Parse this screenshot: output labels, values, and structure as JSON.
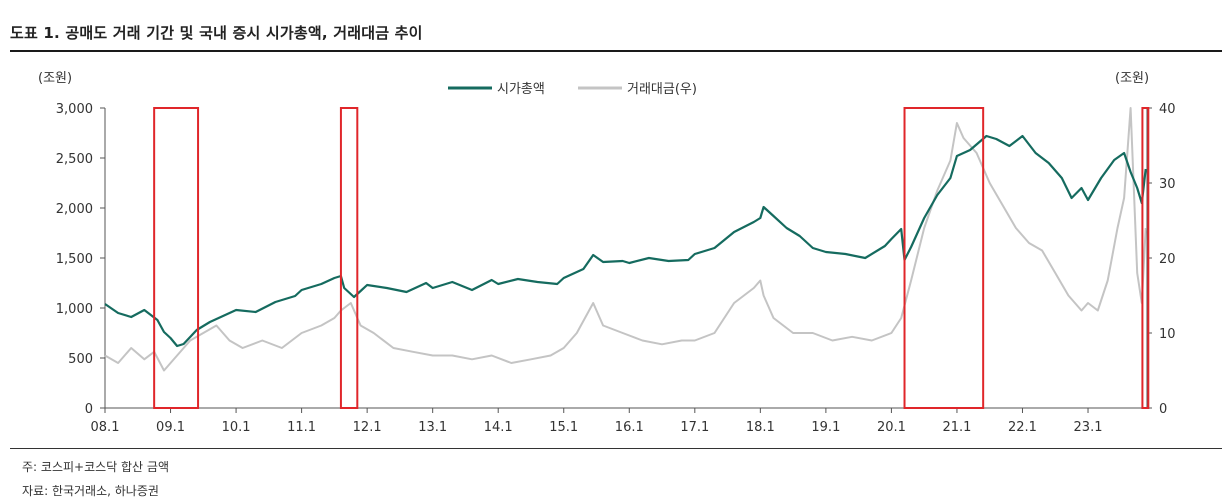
{
  "header": {
    "title": "도표 1. 공매도 거래 기간 및 국내 증시 시가총액, 거래대금 추이"
  },
  "notes": {
    "note": "주: 코스피+코스닥 합산 금액",
    "source": "자료: 한국거래소, 하나증권"
  },
  "chart_data": {
    "type": "line",
    "title": "",
    "ylabel": "(조원)",
    "y2label": "(조원)",
    "ylim": [
      0,
      3000
    ],
    "y2lim": [
      0,
      40
    ],
    "yticks": [
      "3,000",
      "2,500",
      "2,000",
      "1,500",
      "1,000",
      "500",
      "0"
    ],
    "y2ticks": [
      "40",
      "30",
      "20",
      "10",
      "0"
    ],
    "xlim": [
      2008.0,
      2023.9
    ],
    "xticks": [
      "08.1",
      "09.1",
      "10.1",
      "11.1",
      "12.1",
      "13.1",
      "14.1",
      "15.1",
      "16.1",
      "17.1",
      "18.1",
      "19.1",
      "20.1",
      "21.1",
      "22.1",
      "23.1"
    ],
    "grid": false,
    "legend": "top-center",
    "colors": {
      "market_cap": "#156b5f",
      "trading_value": "#c4c4c4",
      "shaded_period": "#e0262a"
    },
    "series": [
      {
        "name": "시가총액",
        "axis": "left",
        "x": [
          2008.0,
          2008.2,
          2008.4,
          2008.6,
          2008.8,
          2008.9,
          2009.0,
          2009.1,
          2009.2,
          2009.4,
          2009.6,
          2009.8,
          2010.0,
          2010.3,
          2010.6,
          2010.9,
          2011.0,
          2011.3,
          2011.5,
          2011.6,
          2011.65,
          2011.8,
          2011.9,
          2012.0,
          2012.3,
          2012.6,
          2012.9,
          2013.0,
          2013.3,
          2013.6,
          2013.9,
          2014.0,
          2014.3,
          2014.6,
          2014.9,
          2015.0,
          2015.3,
          2015.45,
          2015.6,
          2015.9,
          2016.0,
          2016.3,
          2016.6,
          2016.9,
          2017.0,
          2017.3,
          2017.6,
          2017.9,
          2018.0,
          2018.05,
          2018.2,
          2018.4,
          2018.6,
          2018.8,
          2019.0,
          2019.3,
          2019.6,
          2019.9,
          2020.0,
          2020.15,
          2020.2,
          2020.3,
          2020.5,
          2020.7,
          2020.9,
          2021.0,
          2021.2,
          2021.45,
          2021.6,
          2021.8,
          2022.0,
          2022.2,
          2022.4,
          2022.6,
          2022.75,
          2022.9,
          2023.0,
          2023.2,
          2023.4,
          2023.55,
          2023.65,
          2023.75,
          2023.82,
          2023.88
        ],
        "values": [
          1040,
          950,
          910,
          980,
          880,
          760,
          700,
          620,
          640,
          780,
          860,
          920,
          980,
          960,
          1060,
          1120,
          1180,
          1240,
          1300,
          1320,
          1200,
          1110,
          1170,
          1230,
          1200,
          1160,
          1250,
          1200,
          1260,
          1180,
          1280,
          1240,
          1290,
          1260,
          1240,
          1300,
          1390,
          1530,
          1460,
          1470,
          1450,
          1500,
          1470,
          1480,
          1540,
          1600,
          1760,
          1860,
          1900,
          2010,
          1920,
          1800,
          1720,
          1600,
          1560,
          1540,
          1500,
          1620,
          1690,
          1790,
          1480,
          1610,
          1900,
          2130,
          2300,
          2520,
          2580,
          2720,
          2690,
          2620,
          2720,
          2550,
          2450,
          2300,
          2100,
          2200,
          2080,
          2300,
          2480,
          2550,
          2360,
          2200,
          2050,
          2390
        ]
      },
      {
        "name": "거래대금(우)",
        "axis": "right",
        "x": [
          2008.0,
          2008.2,
          2008.4,
          2008.6,
          2008.75,
          2008.9,
          2009.1,
          2009.3,
          2009.5,
          2009.7,
          2009.9,
          2010.1,
          2010.4,
          2010.7,
          2011.0,
          2011.3,
          2011.5,
          2011.6,
          2011.75,
          2011.9,
          2012.1,
          2012.4,
          2012.7,
          2013.0,
          2013.3,
          2013.6,
          2013.9,
          2014.2,
          2014.5,
          2014.8,
          2015.0,
          2015.2,
          2015.45,
          2015.6,
          2015.9,
          2016.2,
          2016.5,
          2016.8,
          2017.0,
          2017.3,
          2017.6,
          2017.9,
          2018.0,
          2018.05,
          2018.2,
          2018.5,
          2018.8,
          2019.1,
          2019.4,
          2019.7,
          2020.0,
          2020.15,
          2020.3,
          2020.5,
          2020.7,
          2020.9,
          2021.0,
          2021.1,
          2021.3,
          2021.5,
          2021.7,
          2021.9,
          2022.1,
          2022.3,
          2022.5,
          2022.7,
          2022.9,
          2023.0,
          2023.15,
          2023.3,
          2023.45,
          2023.55,
          2023.65,
          2023.75,
          2023.82,
          2023.88
        ],
        "values": [
          7,
          6,
          8,
          6.5,
          7.5,
          5,
          7,
          9,
          10,
          11,
          9,
          8,
          9,
          8,
          10,
          11,
          12,
          13,
          14,
          11,
          10,
          8,
          7.5,
          7,
          7,
          6.5,
          7,
          6,
          6.5,
          7,
          8,
          10,
          14,
          11,
          10,
          9,
          8.5,
          9,
          9,
          10,
          14,
          16,
          17,
          15,
          12,
          10,
          10,
          9,
          9.5,
          9,
          10,
          12,
          17,
          24,
          29,
          33,
          38,
          36,
          34,
          30,
          27,
          24,
          22,
          21,
          18,
          15,
          13,
          14,
          13,
          17,
          24,
          28,
          40,
          18,
          14,
          24
        ]
      }
    ],
    "shaded_periods": [
      {
        "start": 2008.75,
        "end": 2009.42
      },
      {
        "start": 2011.6,
        "end": 2011.85
      },
      {
        "start": 2020.2,
        "end": 2021.4
      },
      {
        "start": 2023.83,
        "end": 2023.92
      }
    ]
  }
}
